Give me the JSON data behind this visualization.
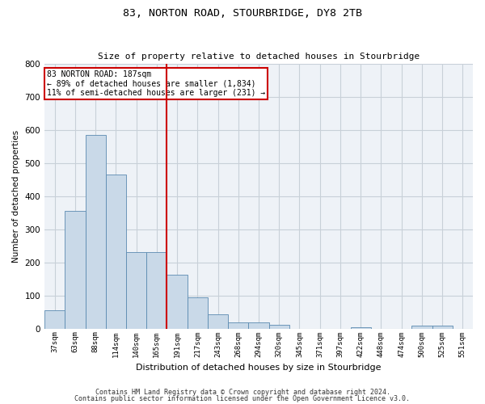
{
  "title1": "83, NORTON ROAD, STOURBRIDGE, DY8 2TB",
  "title2": "Size of property relative to detached houses in Stourbridge",
  "xlabel": "Distribution of detached houses by size in Stourbridge",
  "ylabel": "Number of detached properties",
  "footer1": "Contains HM Land Registry data © Crown copyright and database right 2024.",
  "footer2": "Contains public sector information licensed under the Open Government Licence v3.0.",
  "annotation_line1": "83 NORTON ROAD: 187sqm",
  "annotation_line2": "← 89% of detached houses are smaller (1,834)",
  "annotation_line3": "11% of semi-detached houses are larger (231) →",
  "bar_labels": [
    "37sqm",
    "63sqm",
    "88sqm",
    "114sqm",
    "140sqm",
    "165sqm",
    "191sqm",
    "217sqm",
    "243sqm",
    "268sqm",
    "294sqm",
    "320sqm",
    "345sqm",
    "371sqm",
    "397sqm",
    "422sqm",
    "448sqm",
    "474sqm",
    "500sqm",
    "525sqm",
    "551sqm"
  ],
  "bar_values": [
    55,
    355,
    585,
    465,
    230,
    230,
    163,
    95,
    43,
    18,
    18,
    12,
    0,
    0,
    0,
    5,
    0,
    0,
    8,
    8,
    0
  ],
  "bar_color": "#c9d9e8",
  "bar_edge_color": "#5a8ab0",
  "vline_color": "#cc0000",
  "annotation_box_color": "#cc0000",
  "ylim": [
    0,
    800
  ],
  "yticks": [
    0,
    100,
    200,
    300,
    400,
    500,
    600,
    700,
    800
  ],
  "grid_color": "#c8d0d8",
  "bg_color": "#eef2f7"
}
